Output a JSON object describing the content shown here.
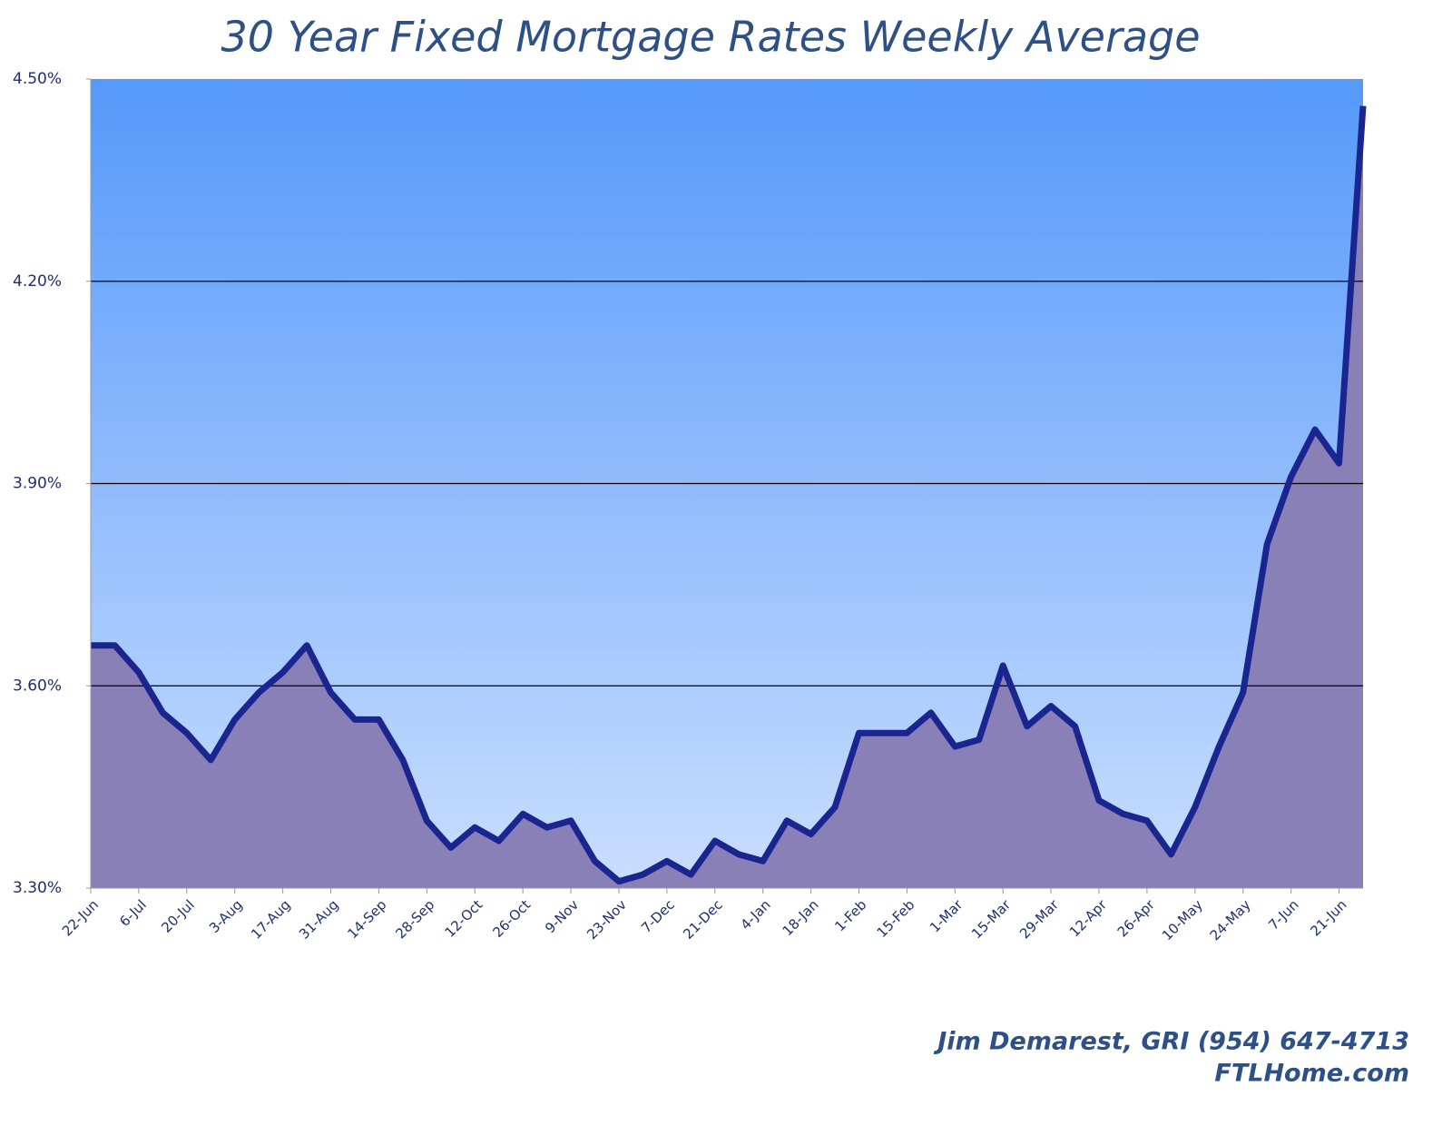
{
  "chart_data": {
    "type": "area",
    "title": "30 Year Fixed Mortgage Rates Weekly Average",
    "footer": [
      "Jim Demarest, GRI (954) 647-4713",
      "FTLHome.com"
    ],
    "categories": [
      "22-Jun",
      null,
      "6-Jul",
      null,
      "20-Jul",
      null,
      "3-Aug",
      null,
      "17-Aug",
      null,
      "31-Aug",
      null,
      "14-Sep",
      null,
      "28-Sep",
      null,
      "12-Oct",
      null,
      "26-Oct",
      null,
      "9-Nov",
      null,
      "23-Nov",
      null,
      "7-Dec",
      null,
      "21-Dec",
      null,
      "4-Jan",
      null,
      "18-Jan",
      null,
      "1-Feb",
      null,
      "15-Feb",
      null,
      "1-Mar",
      null,
      "15-Mar",
      null,
      "29-Mar",
      null,
      "12-Apr",
      null,
      "26-Apr",
      null,
      "10-May",
      null,
      "24-May",
      null,
      "7-Jun",
      null,
      "21-Jun",
      null
    ],
    "values": [
      3.66,
      3.66,
      3.62,
      3.56,
      3.53,
      3.49,
      3.55,
      3.59,
      3.62,
      3.66,
      3.59,
      3.55,
      3.55,
      3.49,
      3.4,
      3.36,
      3.39,
      3.37,
      3.41,
      3.39,
      3.4,
      3.34,
      3.31,
      3.32,
      3.34,
      3.32,
      3.37,
      3.35,
      3.34,
      3.4,
      3.38,
      3.42,
      3.53,
      3.53,
      3.53,
      3.56,
      3.51,
      3.52,
      3.63,
      3.54,
      3.57,
      3.54,
      3.43,
      3.41,
      3.4,
      3.35,
      3.42,
      3.51,
      3.59,
      3.81,
      3.91,
      3.98,
      3.93,
      4.46
    ],
    "line_color": "#1b2590",
    "fill_color": "#8a80b8",
    "ylim": [
      3.3,
      4.5
    ],
    "yticks": [
      {
        "value": 3.3,
        "label": "3.30%"
      },
      {
        "value": 3.6,
        "label": "3.60%"
      },
      {
        "value": 3.9,
        "label": "3.90%"
      },
      {
        "value": 4.2,
        "label": "4.20%"
      },
      {
        "value": 4.5,
        "label": "4.50%"
      }
    ],
    "grid": true
  }
}
